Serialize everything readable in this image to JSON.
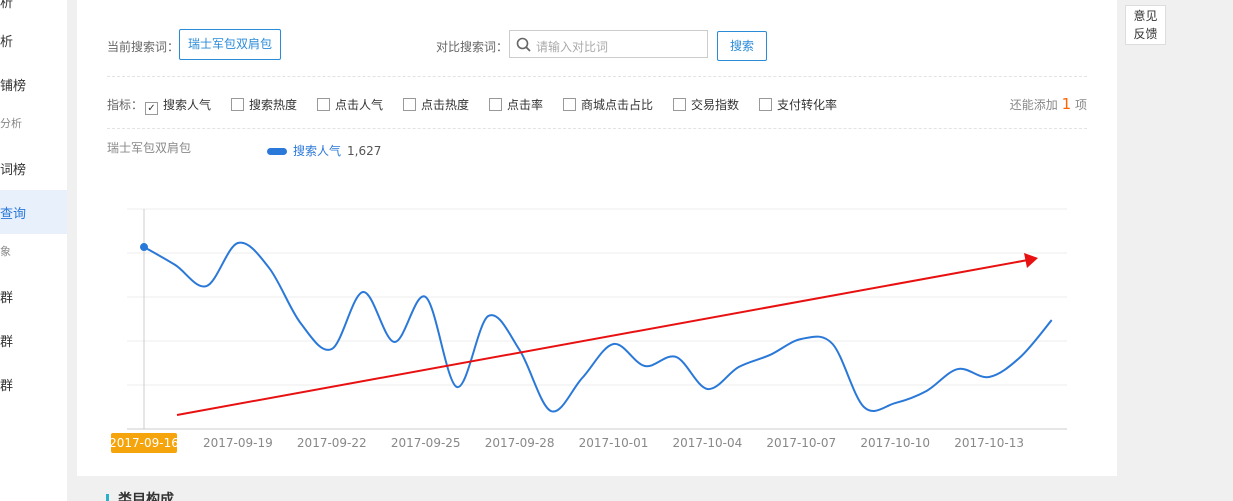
{
  "sidebar": {
    "items": [
      "析",
      "析",
      "铺榜",
      "分析",
      "词榜",
      "查询",
      "象",
      "群",
      "群",
      "群"
    ]
  },
  "search": {
    "current_label": "当前搜索词：",
    "current_term": "瑞士军包双肩包",
    "compare_label": "对比搜索词：",
    "compare_placeholder": "请输入对比词",
    "button": "搜索"
  },
  "metrics": {
    "label": "指标：",
    "options": [
      {
        "text": "搜索人气",
        "checked": true
      },
      {
        "text": "搜索热度",
        "checked": false
      },
      {
        "text": "点击人气",
        "checked": false
      },
      {
        "text": "点击热度",
        "checked": false
      },
      {
        "text": "点击率",
        "checked": false
      },
      {
        "text": "商城点击占比",
        "checked": false
      },
      {
        "text": "交易指数",
        "checked": false
      },
      {
        "text": "支付转化率",
        "checked": false
      }
    ],
    "remaining_prefix": "还能添加",
    "remaining_count": "1",
    "remaining_suffix": "项"
  },
  "feedback": {
    "line1": "意见",
    "line2": "反馈"
  },
  "footer": {
    "section": "类目构成"
  },
  "chart_data": {
    "type": "line",
    "title": "瑞士军包双肩包",
    "x": [
      "2017-09-16",
      null,
      null,
      "2017-09-19",
      null,
      null,
      "2017-09-22",
      null,
      null,
      "2017-09-25",
      null,
      null,
      "2017-09-28",
      null,
      null,
      "2017-10-01",
      null,
      null,
      "2017-10-04",
      null,
      null,
      "2017-10-07",
      null,
      null,
      "2017-10-10",
      null,
      null,
      "2017-10-13",
      null,
      null
    ],
    "series": [
      {
        "name": "搜索人气",
        "color": "#2a78d8",
        "values": [
          1627,
          1466,
          1278,
          1663,
          1439,
          948,
          715,
          1225,
          778,
          1180,
          375,
          1010,
          706,
          161,
          456,
          760,
          563,
          644,
          358,
          554,
          662,
          805,
          760,
          197,
          232,
          340,
          536,
          465,
          644,
          974
        ],
        "value_labels": [
          "1,627",
          null,
          null,
          null,
          null,
          null,
          null,
          null,
          null,
          null,
          null,
          null,
          null,
          null,
          null,
          null,
          null,
          null,
          null,
          null,
          null,
          null,
          null,
          null,
          null,
          null,
          null,
          null,
          null,
          null
        ]
      }
    ],
    "ylim": [
      0,
      1967
    ],
    "highlight_index": 0
  }
}
